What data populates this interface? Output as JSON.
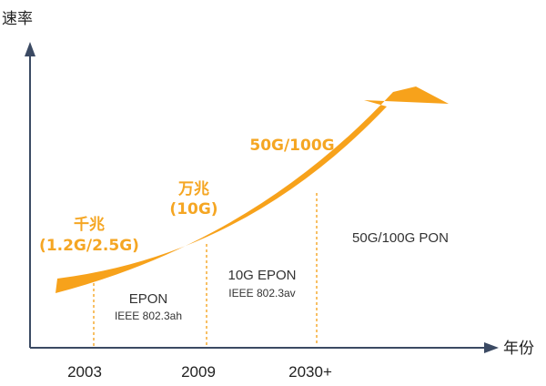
{
  "axes": {
    "y_label": "速率",
    "x_label": "年份"
  },
  "years": [
    "2003",
    "2009",
    "2030+"
  ],
  "speeds": {
    "gigabit_line1": "千兆",
    "gigabit_line2": "(1.2G/2.5G)",
    "ten_gigabit_line1": "万兆",
    "ten_gigabit_line2": "(10G)",
    "next_gen": "50G/100G"
  },
  "technologies": {
    "epon": "EPON",
    "epon_std": "IEEE 802.3ah",
    "ten_g_epon": "10G EPON",
    "ten_g_epon_std": "IEEE 802.3av",
    "pon_50_100": "50G/100G PON"
  },
  "colors": {
    "accent": "#f7a21b",
    "axis": "#3b4a63"
  }
}
